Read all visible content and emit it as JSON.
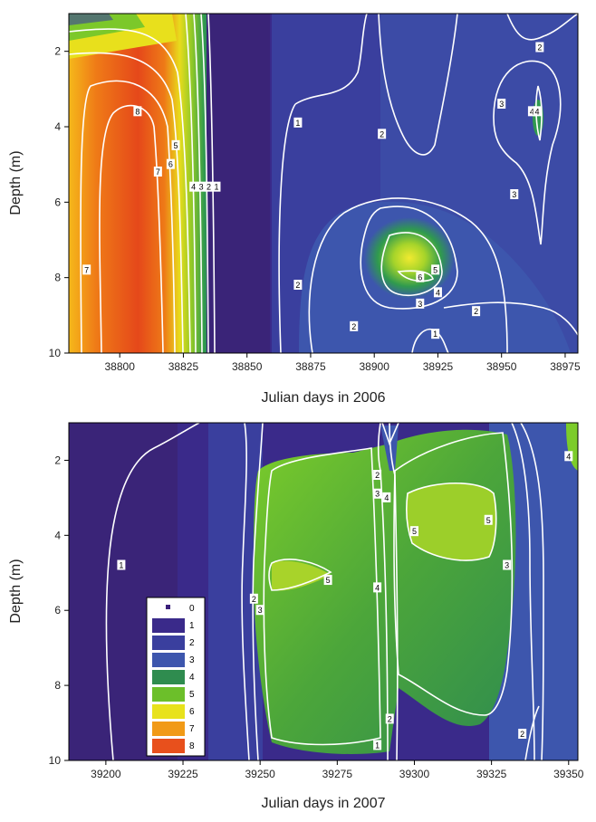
{
  "chart_data": [
    {
      "type": "heatmap",
      "title": "",
      "xlabel": "Julian days in 2006",
      "ylabel": "Depth (m)",
      "xlim": [
        38780,
        38980
      ],
      "ylim": [
        1,
        10
      ],
      "y_inverted": true,
      "x_ticks": [
        "38800",
        "38825",
        "38850",
        "38875",
        "38900",
        "38925",
        "38950",
        "38975"
      ],
      "y_ticks": [
        "2",
        "4",
        "6",
        "8",
        "10"
      ],
      "colorscale": [
        {
          "level": "0",
          "color": "#3a1f7a"
        },
        {
          "level": "1",
          "color": "#3a2a8a"
        },
        {
          "level": "2",
          "color": "#3a3f9e"
        },
        {
          "level": "3",
          "color": "#3d56ad"
        },
        {
          "level": "4",
          "color": "#2f8c4f"
        },
        {
          "level": "5",
          "color": "#6cbf2a"
        },
        {
          "level": "6",
          "color": "#e8e21c"
        },
        {
          "level": "7",
          "color": "#f19a17"
        },
        {
          "level": "8",
          "color": "#e8501c"
        }
      ],
      "contour_labels": [
        {
          "text": "2",
          "x": 38965,
          "y": 1.9
        },
        {
          "text": "8",
          "x": 38807,
          "y": 3.6
        },
        {
          "text": "1",
          "x": 38870,
          "y": 3.9
        },
        {
          "text": "2",
          "x": 38903,
          "y": 4.2
        },
        {
          "text": "3",
          "x": 38950,
          "y": 3.4
        },
        {
          "text": "4",
          "x": 38962,
          "y": 3.6
        },
        {
          "text": "4",
          "x": 38964,
          "y": 3.6
        },
        {
          "text": "5",
          "x": 38822,
          "y": 4.5
        },
        {
          "text": "6",
          "x": 38820,
          "y": 5.0
        },
        {
          "text": "7",
          "x": 38815,
          "y": 5.2
        },
        {
          "text": "4",
          "x": 38829,
          "y": 5.6
        },
        {
          "text": "3",
          "x": 38832,
          "y": 5.6
        },
        {
          "text": "2",
          "x": 38835,
          "y": 5.6
        },
        {
          "text": "1",
          "x": 38838,
          "y": 5.6
        },
        {
          "text": "3",
          "x": 38955,
          "y": 5.8
        },
        {
          "text": "7",
          "x": 38787,
          "y": 7.8
        },
        {
          "text": "6",
          "x": 38918,
          "y": 8.0
        },
        {
          "text": "5",
          "x": 38924,
          "y": 7.8
        },
        {
          "text": "2",
          "x": 38870,
          "y": 8.2
        },
        {
          "text": "4",
          "x": 38925,
          "y": 8.4
        },
        {
          "text": "3",
          "x": 38918,
          "y": 8.7
        },
        {
          "text": "2",
          "x": 38940,
          "y": 8.9
        },
        {
          "text": "2",
          "x": 38892,
          "y": 9.3
        },
        {
          "text": "1",
          "x": 38924,
          "y": 9.5
        }
      ]
    },
    {
      "type": "heatmap",
      "title": "",
      "xlabel": "Julian days in 2007",
      "ylabel": "Depth (m)",
      "xlim": [
        39188,
        39353
      ],
      "ylim": [
        1,
        10
      ],
      "y_inverted": true,
      "x_ticks": [
        "39200",
        "39225",
        "39250",
        "39275",
        "39300",
        "39325",
        "39350"
      ],
      "y_ticks": [
        "2",
        "4",
        "6",
        "8",
        "10"
      ],
      "legend": {
        "placement": "bottom-left",
        "levels": [
          "0",
          "1",
          "2",
          "3",
          "4",
          "5",
          "6",
          "7",
          "8"
        ]
      },
      "contour_labels": [
        {
          "text": "4",
          "x": 39350,
          "y": 1.9
        },
        {
          "text": "2",
          "x": 39288,
          "y": 2.4
        },
        {
          "text": "3",
          "x": 39288,
          "y": 2.9
        },
        {
          "text": "4",
          "x": 39291,
          "y": 3.0
        },
        {
          "text": "5",
          "x": 39300,
          "y": 3.9
        },
        {
          "text": "5",
          "x": 39324,
          "y": 3.6
        },
        {
          "text": "1",
          "x": 39205,
          "y": 4.8
        },
        {
          "text": "3",
          "x": 39330,
          "y": 4.8
        },
        {
          "text": "5",
          "x": 39272,
          "y": 5.2
        },
        {
          "text": "4",
          "x": 39288,
          "y": 5.4
        },
        {
          "text": "2",
          "x": 39248,
          "y": 5.7
        },
        {
          "text": "3",
          "x": 39250,
          "y": 6.0
        },
        {
          "text": "2",
          "x": 39292,
          "y": 8.9
        },
        {
          "text": "2",
          "x": 39335,
          "y": 9.3
        },
        {
          "text": "1",
          "x": 39288,
          "y": 9.6
        }
      ]
    }
  ]
}
